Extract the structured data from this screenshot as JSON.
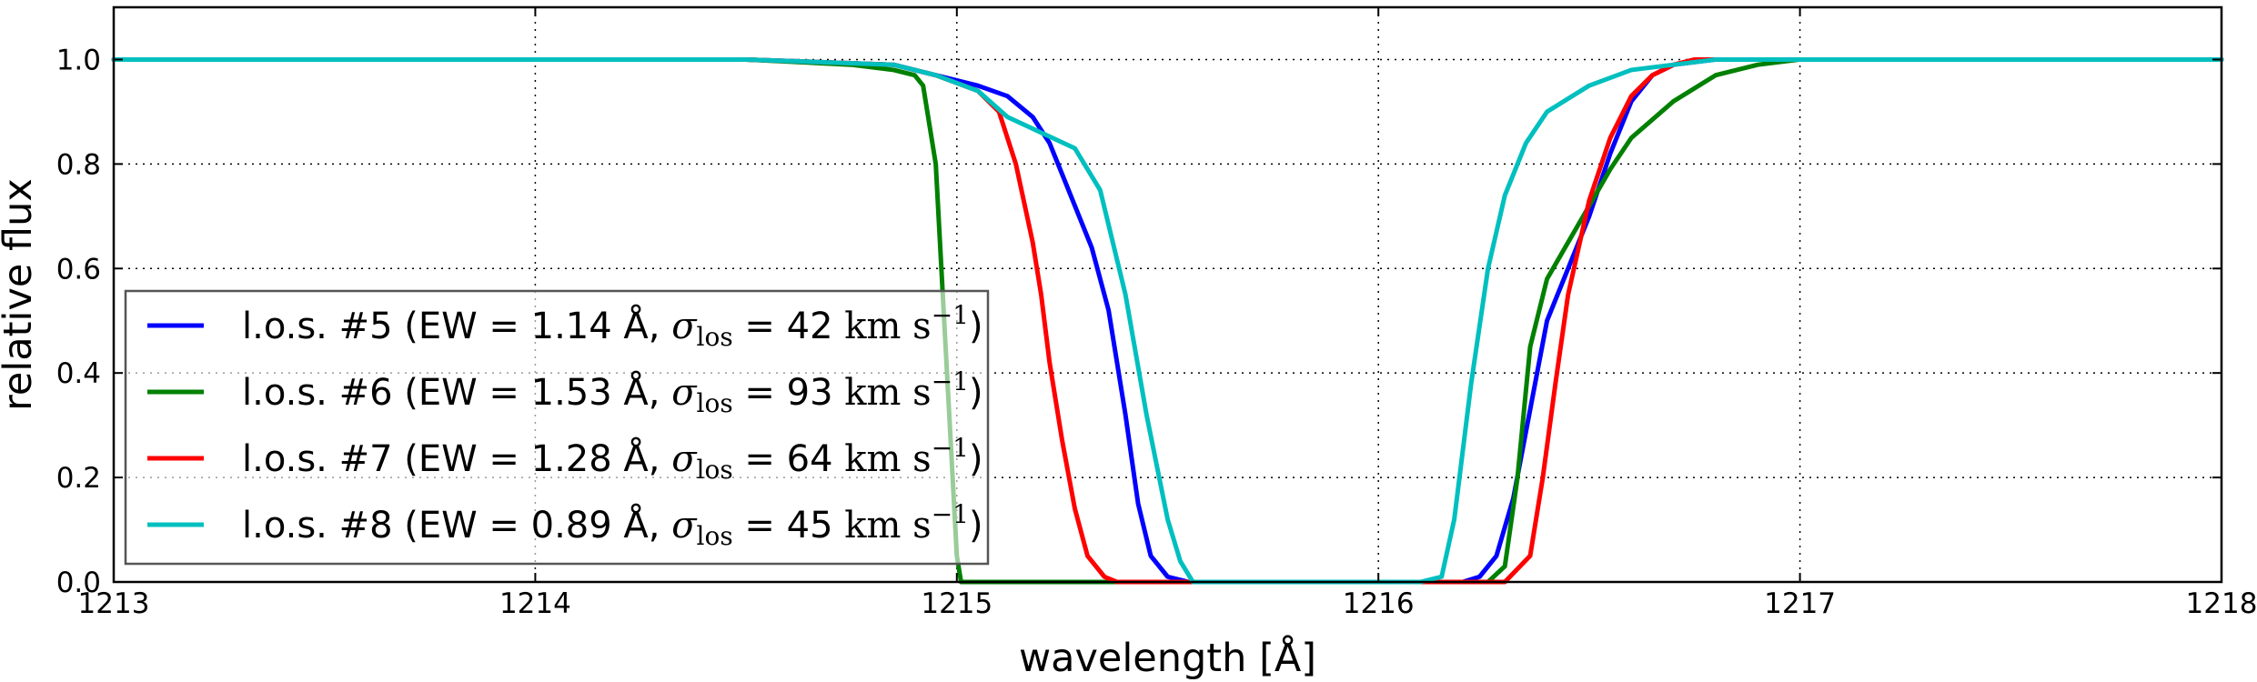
{
  "chart_data": {
    "type": "line",
    "title": "",
    "xlabel": "wavelength [Å]",
    "ylabel": "relative flux",
    "xlim": [
      1213,
      1218
    ],
    "ylim": [
      0.0,
      1.1
    ],
    "grid": true,
    "legend_position": "lower-left",
    "x_ticks": [
      "1213",
      "1214",
      "1215",
      "1216",
      "1217",
      "1218"
    ],
    "y_ticks": [
      "0.0",
      "0.2",
      "0.4",
      "0.6",
      "0.8",
      "1.0"
    ],
    "series": [
      {
        "name": "l.o.s. #5",
        "label": "l.o.s. #5  (EW = 1.14 Å, ",
        "sigma_value": " = 42 ",
        "color": "#0000ff",
        "x": [
          1213,
          1214.5,
          1214.85,
          1214.95,
          1215.05,
          1215.12,
          1215.18,
          1215.22,
          1215.25,
          1215.28,
          1215.32,
          1215.36,
          1215.4,
          1215.43,
          1215.46,
          1215.5,
          1215.55,
          1215.6,
          1216.0,
          1216.1,
          1216.15,
          1216.2,
          1216.24,
          1216.28,
          1216.32,
          1216.36,
          1216.4,
          1216.45,
          1216.5,
          1216.55,
          1216.6,
          1216.65,
          1216.7,
          1216.8,
          1217,
          1218
        ],
        "y": [
          1.0,
          1.0,
          0.99,
          0.97,
          0.95,
          0.93,
          0.89,
          0.84,
          0.78,
          0.72,
          0.64,
          0.52,
          0.32,
          0.15,
          0.05,
          0.01,
          0.0,
          0.0,
          0.0,
          0.0,
          0.0,
          0.0,
          0.01,
          0.05,
          0.16,
          0.33,
          0.5,
          0.6,
          0.7,
          0.82,
          0.92,
          0.97,
          0.99,
          1.0,
          1.0,
          1.0
        ]
      },
      {
        "name": "l.o.s. #6",
        "label": "l.o.s. #6  (EW = 1.53 Å, ",
        "sigma_value": " = 93 ",
        "color": "#008000",
        "x": [
          1213,
          1214.5,
          1214.75,
          1214.85,
          1214.9,
          1214.92,
          1214.95,
          1214.97,
          1214.99,
          1215.0,
          1215.01,
          1216.0,
          1216.26,
          1216.3,
          1216.33,
          1216.36,
          1216.4,
          1216.45,
          1216.5,
          1216.55,
          1216.6,
          1216.7,
          1216.8,
          1216.9,
          1217.0,
          1218
        ],
        "y": [
          1.0,
          1.0,
          0.99,
          0.98,
          0.97,
          0.95,
          0.8,
          0.5,
          0.2,
          0.05,
          0.0,
          0.0,
          0.0,
          0.03,
          0.2,
          0.45,
          0.58,
          0.65,
          0.72,
          0.79,
          0.85,
          0.92,
          0.97,
          0.99,
          1.0,
          1.0
        ]
      },
      {
        "name": "l.o.s. #7",
        "label": "l.o.s. #7  (EW = 1.28 Å, ",
        "sigma_value": " = 64 ",
        "color": "#ff0000",
        "x": [
          1213,
          1214.5,
          1214.85,
          1214.95,
          1215.05,
          1215.1,
          1215.14,
          1215.18,
          1215.2,
          1215.22,
          1215.25,
          1215.28,
          1215.31,
          1215.35,
          1215.38,
          1215.4,
          1216.0,
          1216.3,
          1216.36,
          1216.39,
          1216.42,
          1216.45,
          1216.5,
          1216.55,
          1216.6,
          1216.65,
          1216.7,
          1216.75,
          1216.8,
          1217,
          1218
        ],
        "y": [
          1.0,
          1.0,
          0.99,
          0.97,
          0.94,
          0.9,
          0.8,
          0.65,
          0.55,
          0.42,
          0.27,
          0.14,
          0.05,
          0.01,
          0.0,
          0.0,
          0.0,
          0.0,
          0.05,
          0.2,
          0.38,
          0.55,
          0.73,
          0.85,
          0.93,
          0.97,
          0.99,
          1.0,
          1.0,
          1.0,
          1.0
        ]
      },
      {
        "name": "l.o.s. #8",
        "label": "l.o.s. #8  (EW = 0.89 Å, ",
        "sigma_value": " = 45 ",
        "color": "#00bfbf",
        "x": [
          1213,
          1214.5,
          1214.85,
          1214.95,
          1215.05,
          1215.12,
          1215.2,
          1215.28,
          1215.34,
          1215.4,
          1215.45,
          1215.5,
          1215.53,
          1215.56,
          1215.6,
          1216.0,
          1216.1,
          1216.15,
          1216.18,
          1216.22,
          1216.26,
          1216.3,
          1216.35,
          1216.4,
          1216.5,
          1216.6,
          1216.7,
          1216.8,
          1217.0,
          1218
        ],
        "y": [
          1.0,
          1.0,
          0.99,
          0.97,
          0.94,
          0.89,
          0.86,
          0.83,
          0.75,
          0.55,
          0.32,
          0.12,
          0.04,
          0.0,
          0.0,
          0.0,
          0.0,
          0.01,
          0.12,
          0.38,
          0.6,
          0.74,
          0.84,
          0.9,
          0.95,
          0.98,
          0.99,
          1.0,
          1.0,
          1.0
        ]
      }
    ],
    "sigma_symbol": "σ",
    "sigma_subscript": "los",
    "units_main": "km s",
    "units_exponent": "−1",
    "closing_paren": ")"
  }
}
